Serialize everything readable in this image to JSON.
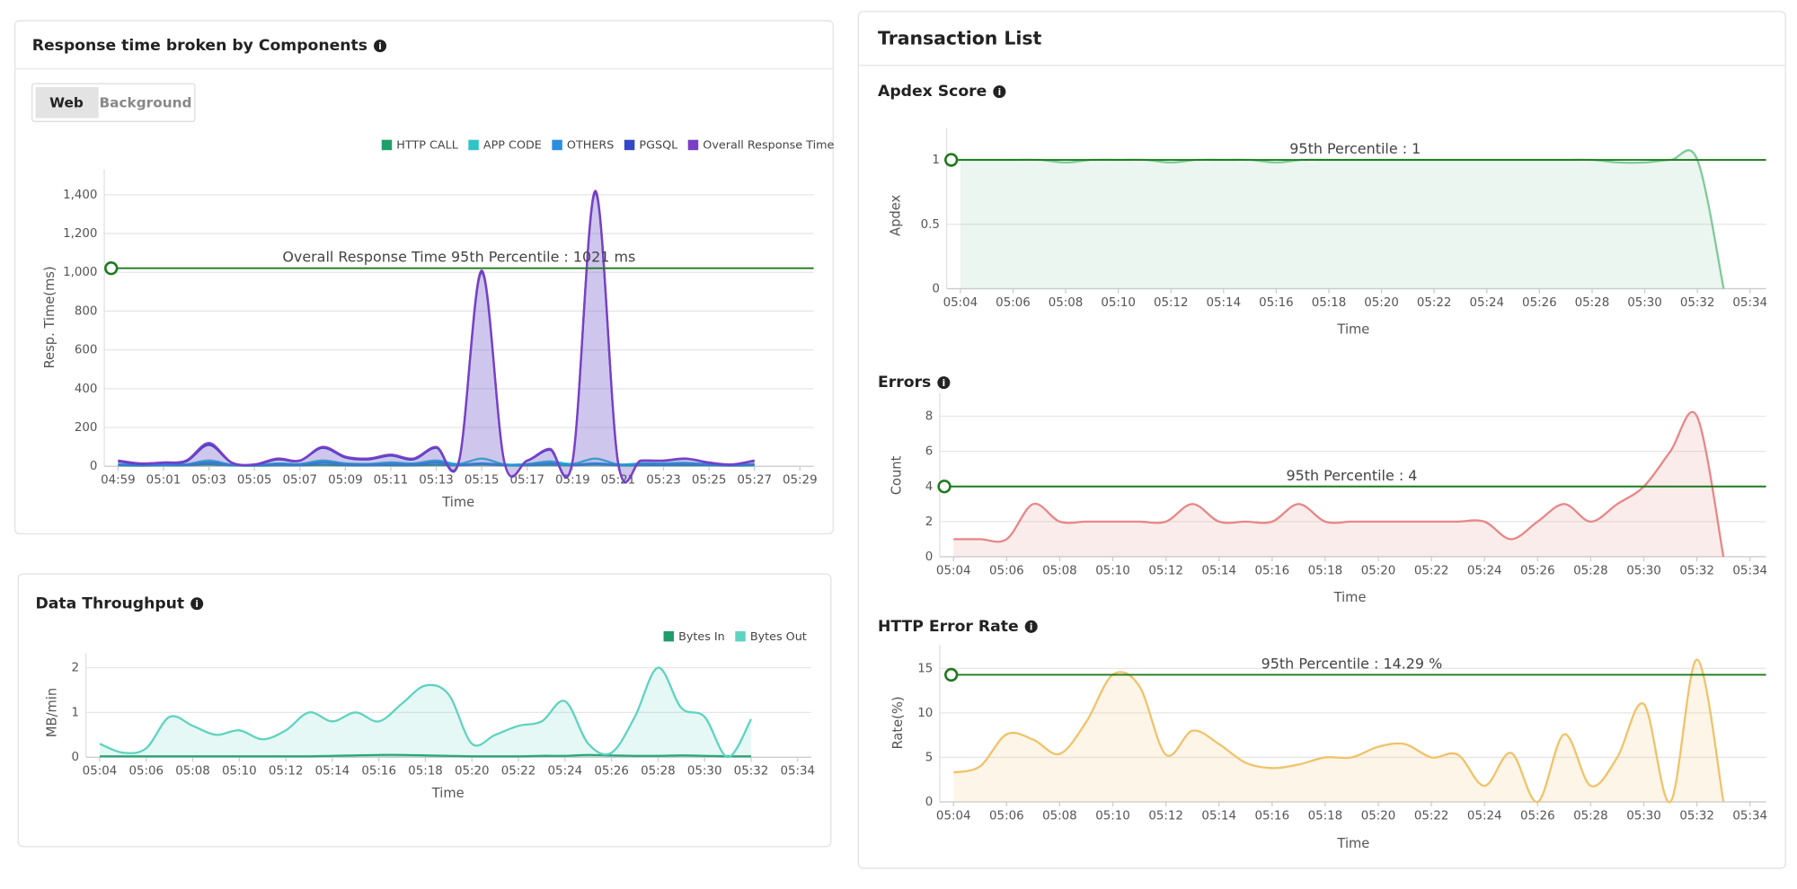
{
  "page": {
    "title": "Transaction List",
    "tabs": [
      "Web",
      "Background"
    ]
  },
  "chart_data": [
    {
      "type": "area",
      "title": "Response time broken by Components",
      "x": [
        "04:59",
        "05:00",
        "05:01",
        "05:02",
        "05:03",
        "05:04",
        "05:05",
        "05:06",
        "05:07",
        "05:08",
        "05:09",
        "05:10",
        "05:11",
        "05:12",
        "05:13",
        "05:14",
        "05:15",
        "05:16",
        "05:17",
        "05:18",
        "05:19",
        "05:20",
        "05:21",
        "05:22",
        "05:23",
        "05:24",
        "05:25",
        "05:26",
        "05:27"
      ],
      "series": [
        {
          "name": "HTTP CALL",
          "color": "#1f9e6b",
          "values": [
            5,
            3,
            5,
            5,
            10,
            5,
            3,
            5,
            5,
            8,
            5,
            5,
            5,
            5,
            8,
            5,
            10,
            5,
            5,
            8,
            5,
            10,
            5,
            5,
            5,
            5,
            5,
            3,
            5
          ]
        },
        {
          "name": "APP CODE",
          "color": "#2ec4c8",
          "values": [
            10,
            5,
            8,
            10,
            30,
            8,
            5,
            15,
            12,
            30,
            15,
            12,
            20,
            15,
            30,
            12,
            40,
            10,
            12,
            25,
            12,
            40,
            10,
            15,
            15,
            18,
            10,
            5,
            12
          ]
        },
        {
          "name": "OTHERS",
          "color": "#2b8fe0",
          "values": [
            8,
            5,
            6,
            8,
            20,
            6,
            4,
            10,
            8,
            20,
            10,
            8,
            12,
            10,
            20,
            8,
            15,
            8,
            8,
            15,
            8,
            15,
            8,
            10,
            10,
            12,
            8,
            4,
            10
          ]
        },
        {
          "name": "PGSQL",
          "color": "#3547c6",
          "values": [
            25,
            12,
            18,
            25,
            110,
            18,
            8,
            35,
            28,
            95,
            45,
            35,
            55,
            35,
            95,
            25,
            1000,
            18,
            28,
            85,
            28,
            1410,
            18,
            28,
            28,
            38,
            18,
            8,
            28
          ]
        },
        {
          "name": "Overall Response Time",
          "color": "#7b3fc6",
          "values": [
            30,
            15,
            20,
            30,
            120,
            20,
            10,
            40,
            30,
            100,
            50,
            40,
            60,
            40,
            100,
            30,
            1010,
            20,
            30,
            90,
            30,
            1420,
            20,
            30,
            30,
            40,
            20,
            10,
            30
          ]
        }
      ],
      "xlim": [
        "04:59",
        "05:29"
      ],
      "xticks": [
        "04:59",
        "05:01",
        "05:03",
        "05:05",
        "05:07",
        "05:09",
        "05:11",
        "05:13",
        "05:15",
        "05:17",
        "05:19",
        "05:21",
        "05:23",
        "05:25",
        "05:27",
        "05:29"
      ],
      "ylim": [
        0,
        1500
      ],
      "yticks": [
        0,
        200,
        400,
        600,
        800,
        {
          "value": 1000,
          "label": "1,000"
        },
        {
          "value": 1200,
          "label": "1,200"
        },
        {
          "value": 1400,
          "label": "1,400"
        }
      ],
      "xlabel": "Time",
      "ylabel": "Resp. Time(ms)",
      "grid": true,
      "legend": "top-right",
      "threshold": {
        "value": 1021,
        "label": "Overall Response Time 95th Percentile : 1021 ms",
        "color": "#1d7a1d"
      }
    },
    {
      "type": "area",
      "title": "Data Throughput",
      "x": [
        "05:04",
        "05:05",
        "05:06",
        "05:07",
        "05:08",
        "05:09",
        "05:10",
        "05:11",
        "05:12",
        "05:13",
        "05:14",
        "05:15",
        "05:16",
        "05:17",
        "05:18",
        "05:19",
        "05:20",
        "05:21",
        "05:22",
        "05:23",
        "05:24",
        "05:25",
        "05:26",
        "05:27",
        "05:28",
        "05:29",
        "05:30",
        "05:31",
        "05:32"
      ],
      "series": [
        {
          "name": "Bytes In",
          "color": "#1f9e6b",
          "values": [
            0.02,
            0.02,
            0.02,
            0.02,
            0.02,
            0.02,
            0.02,
            0.02,
            0.02,
            0.02,
            0.03,
            0.04,
            0.05,
            0.05,
            0.04,
            0.03,
            0.02,
            0.02,
            0.02,
            0.03,
            0.03,
            0.05,
            0.04,
            0.03,
            0.03,
            0.04,
            0.03,
            0.02,
            0.02
          ]
        },
        {
          "name": "Bytes Out",
          "color": "#5fd3c0",
          "values": [
            0.3,
            0.1,
            0.2,
            0.9,
            0.7,
            0.5,
            0.6,
            0.4,
            0.6,
            1.0,
            0.8,
            1.0,
            0.8,
            1.2,
            1.6,
            1.4,
            0.3,
            0.5,
            0.7,
            0.8,
            1.25,
            0.3,
            0.1,
            0.9,
            2.0,
            1.1,
            0.9,
            0.0,
            0.85
          ]
        }
      ],
      "xlim": [
        "05:04",
        "05:34"
      ],
      "xticks": [
        "05:04",
        "05:06",
        "05:08",
        "05:10",
        "05:12",
        "05:14",
        "05:16",
        "05:18",
        "05:20",
        "05:22",
        "05:24",
        "05:26",
        "05:28",
        "05:30",
        "05:32",
        "05:34"
      ],
      "ylim": [
        0,
        2.2
      ],
      "yticks": [
        0,
        1,
        2
      ],
      "xlabel": "Time",
      "ylabel": "MB/min",
      "grid": true,
      "legend": "top-right"
    },
    {
      "type": "area",
      "title": "Apdex Score",
      "x": [
        "05:04",
        "05:05",
        "05:06",
        "05:07",
        "05:08",
        "05:09",
        "05:10",
        "05:11",
        "05:12",
        "05:13",
        "05:14",
        "05:15",
        "05:16",
        "05:17",
        "05:18",
        "05:19",
        "05:20",
        "05:21",
        "05:22",
        "05:23",
        "05:24",
        "05:25",
        "05:26",
        "05:27",
        "05:28",
        "05:29",
        "05:30",
        "05:31",
        "05:32",
        "05:33"
      ],
      "series": [
        {
          "color": "#7fca99",
          "values": [
            1,
            1,
            1,
            1,
            0.98,
            1,
            1,
            1,
            0.98,
            1,
            1,
            1,
            0.98,
            1,
            1,
            1,
            1,
            1,
            1,
            1,
            1,
            1,
            1,
            1,
            1,
            0.98,
            0.98,
            1,
            1,
            0
          ]
        }
      ],
      "xlim": [
        "05:04",
        "05:34"
      ],
      "xticks": [
        "05:04",
        "05:06",
        "05:08",
        "05:10",
        "05:12",
        "05:14",
        "05:16",
        "05:18",
        "05:20",
        "05:22",
        "05:24",
        "05:26",
        "05:28",
        "05:30",
        "05:32",
        "05:34"
      ],
      "ylim": [
        0,
        1.2
      ],
      "yticks": [
        0,
        0.5,
        1
      ],
      "xlabel": "Time",
      "ylabel": "Apdex",
      "grid": true,
      "threshold": {
        "value": 1,
        "label": "95th Percentile : 1",
        "color": "#1d7a1d"
      }
    },
    {
      "type": "area",
      "title": "Errors",
      "x": [
        "05:04",
        "05:05",
        "05:06",
        "05:07",
        "05:08",
        "05:09",
        "05:10",
        "05:11",
        "05:12",
        "05:13",
        "05:14",
        "05:15",
        "05:16",
        "05:17",
        "05:18",
        "05:19",
        "05:20",
        "05:21",
        "05:22",
        "05:23",
        "05:24",
        "05:25",
        "05:26",
        "05:27",
        "05:28",
        "05:29",
        "05:30",
        "05:31",
        "05:32",
        "05:33"
      ],
      "series": [
        {
          "color": "#e88787",
          "values": [
            1,
            1,
            1,
            3,
            2,
            2,
            2,
            2,
            2,
            3,
            2,
            2,
            2,
            3,
            2,
            2,
            2,
            2,
            2,
            2,
            2,
            1,
            2,
            3,
            2,
            3,
            4,
            6,
            8,
            0
          ]
        }
      ],
      "xlim": [
        "05:04",
        "05:34"
      ],
      "xticks": [
        "05:04",
        "05:06",
        "05:08",
        "05:10",
        "05:12",
        "05:14",
        "05:16",
        "05:18",
        "05:20",
        "05:22",
        "05:24",
        "05:26",
        "05:28",
        "05:30",
        "05:32",
        "05:34"
      ],
      "ylim": [
        0,
        9
      ],
      "yticks": [
        0,
        2,
        4,
        6,
        8
      ],
      "xlabel": "Time",
      "ylabel": "Count",
      "grid": true,
      "threshold": {
        "value": 4,
        "label": "95th Percentile : 4",
        "color": "#1d7a1d"
      }
    },
    {
      "type": "area",
      "title": "HTTP Error Rate",
      "x": [
        "05:04",
        "05:05",
        "05:06",
        "05:07",
        "05:08",
        "05:09",
        "05:10",
        "05:11",
        "05:12",
        "05:13",
        "05:14",
        "05:15",
        "05:16",
        "05:17",
        "05:18",
        "05:19",
        "05:20",
        "05:21",
        "05:22",
        "05:23",
        "05:24",
        "05:25",
        "05:26",
        "05:27",
        "05:28",
        "05:29",
        "05:30",
        "05:31",
        "05:32",
        "05:33"
      ],
      "series": [
        {
          "color": "#f0c26a",
          "values": [
            3.3,
            4,
            7.6,
            7,
            5.4,
            9,
            14.3,
            13,
            5.3,
            8,
            6.5,
            4.4,
            3.8,
            4.2,
            5,
            5,
            6.2,
            6.5,
            5,
            5.3,
            1.8,
            5.5,
            0,
            7.6,
            1.8,
            5,
            11,
            0,
            16,
            0
          ]
        }
      ],
      "xlim": [
        "05:04",
        "05:34"
      ],
      "xticks": [
        "05:04",
        "05:06",
        "05:08",
        "05:10",
        "05:12",
        "05:14",
        "05:16",
        "05:18",
        "05:20",
        "05:22",
        "05:24",
        "05:26",
        "05:28",
        "05:30",
        "05:32",
        "05:34"
      ],
      "ylim": [
        0,
        17
      ],
      "yticks": [
        0,
        5,
        10,
        15
      ],
      "xlabel": "Time",
      "ylabel": "Rate(%)",
      "grid": true,
      "threshold": {
        "value": 14.29,
        "label": "95th Percentile : 14.29 %",
        "color": "#1d7a1d"
      }
    }
  ]
}
